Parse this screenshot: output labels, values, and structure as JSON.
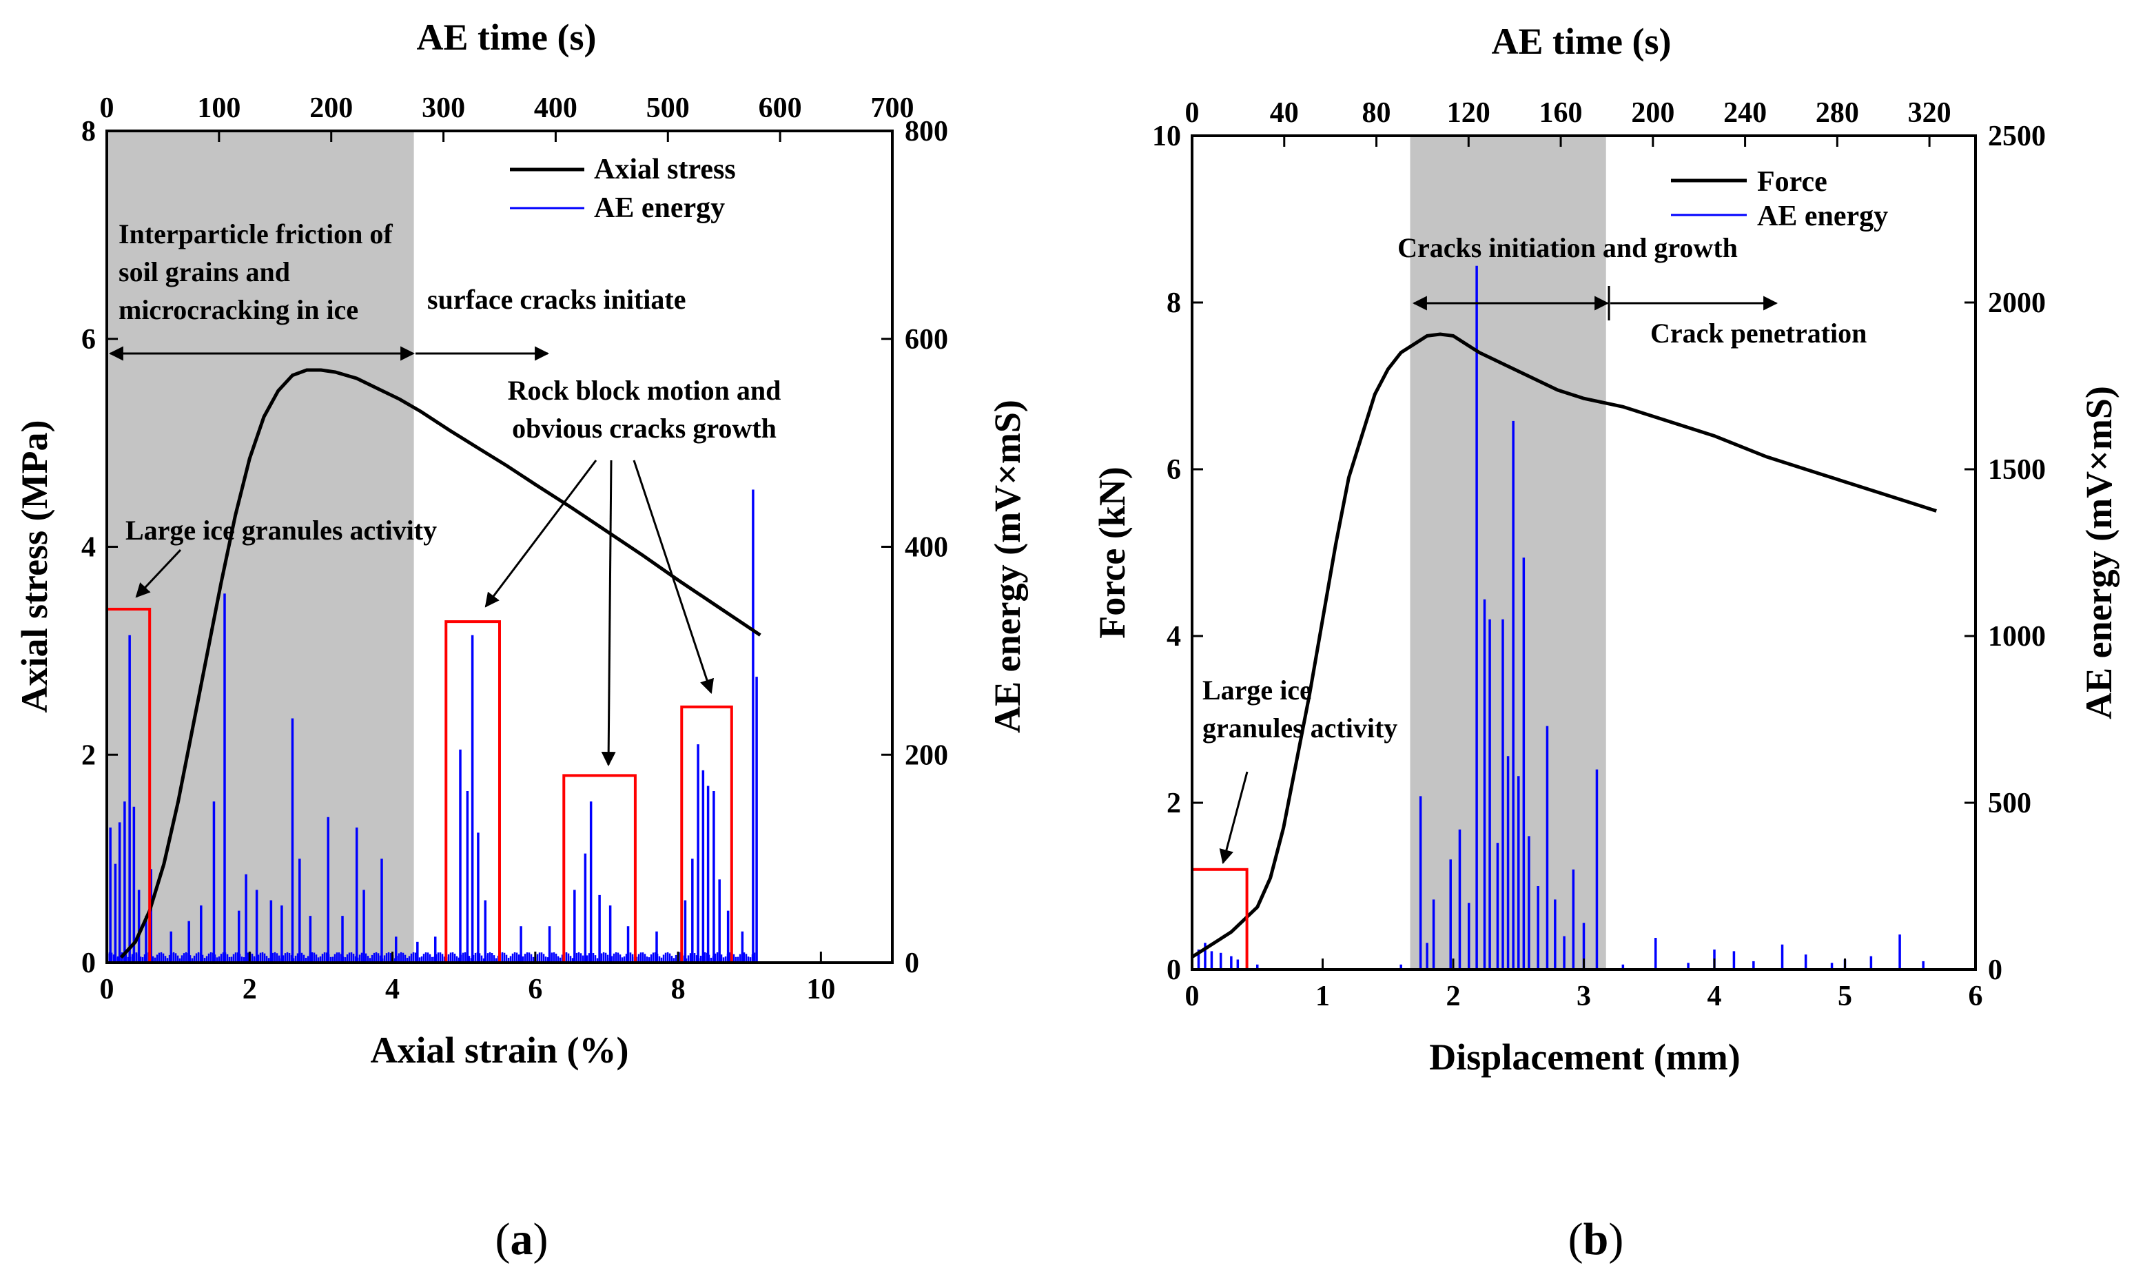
{
  "chart_data": [
    {
      "panel": "a",
      "type": "line",
      "caption_letter": "a",
      "x_bottom": {
        "label": "Axial strain (%)",
        "range": [
          0,
          11
        ],
        "ticks": [
          0,
          2,
          4,
          6,
          8,
          10
        ]
      },
      "x_top": {
        "label": "AE time (s)",
        "range": [
          0,
          700
        ],
        "ticks": [
          0,
          100,
          200,
          300,
          400,
          500,
          600,
          700
        ]
      },
      "y_left": {
        "label": "Axial stress (MPa)",
        "range": [
          0,
          8
        ],
        "ticks": [
          0,
          2,
          4,
          6,
          8
        ]
      },
      "y_right": {
        "label": "AE energy (mV×mS)",
        "range": [
          0,
          800
        ],
        "ticks": [
          0,
          200,
          400,
          600,
          800
        ]
      },
      "shaded_x": [
        0,
        4.3
      ],
      "legend": [
        {
          "name": "Axial stress",
          "color": "#000000"
        },
        {
          "name": "AE energy",
          "color": "#0000ff"
        }
      ],
      "series": [
        {
          "name": "Axial stress",
          "axis": "left",
          "color": "#000000",
          "x": [
            0.2,
            0.4,
            0.6,
            0.8,
            1.0,
            1.2,
            1.4,
            1.6,
            1.8,
            2.0,
            2.2,
            2.4,
            2.6,
            2.8,
            3.0,
            3.2,
            3.5,
            3.8,
            4.1,
            4.4,
            4.8,
            5.2,
            5.6,
            6.0,
            6.5,
            7.0,
            7.5,
            8.0,
            8.5,
            9.0,
            9.15
          ],
          "y": [
            0.05,
            0.2,
            0.5,
            0.95,
            1.55,
            2.25,
            2.95,
            3.65,
            4.3,
            4.85,
            5.25,
            5.5,
            5.65,
            5.7,
            5.7,
            5.68,
            5.62,
            5.52,
            5.42,
            5.3,
            5.12,
            4.95,
            4.78,
            4.6,
            4.38,
            4.15,
            3.92,
            3.68,
            3.45,
            3.22,
            3.15
          ]
        },
        {
          "name": "AE energy",
          "axis": "right",
          "color": "#0000ff",
          "type": "spikes",
          "baseline": 10,
          "peaks": [
            {
              "x": 0.05,
              "y": 130
            },
            {
              "x": 0.12,
              "y": 95
            },
            {
              "x": 0.18,
              "y": 135
            },
            {
              "x": 0.25,
              "y": 155
            },
            {
              "x": 0.32,
              "y": 315
            },
            {
              "x": 0.38,
              "y": 150
            },
            {
              "x": 0.45,
              "y": 70
            },
            {
              "x": 0.55,
              "y": 45
            },
            {
              "x": 0.62,
              "y": 90
            },
            {
              "x": 0.9,
              "y": 30
            },
            {
              "x": 1.15,
              "y": 40
            },
            {
              "x": 1.32,
              "y": 55
            },
            {
              "x": 1.5,
              "y": 155
            },
            {
              "x": 1.65,
              "y": 355
            },
            {
              "x": 1.85,
              "y": 50
            },
            {
              "x": 1.95,
              "y": 85
            },
            {
              "x": 2.1,
              "y": 70
            },
            {
              "x": 2.3,
              "y": 60
            },
            {
              "x": 2.45,
              "y": 55
            },
            {
              "x": 2.6,
              "y": 235
            },
            {
              "x": 2.7,
              "y": 100
            },
            {
              "x": 2.85,
              "y": 45
            },
            {
              "x": 3.1,
              "y": 140
            },
            {
              "x": 3.3,
              "y": 45
            },
            {
              "x": 3.5,
              "y": 130
            },
            {
              "x": 3.6,
              "y": 70
            },
            {
              "x": 3.85,
              "y": 100
            },
            {
              "x": 4.05,
              "y": 25
            },
            {
              "x": 4.35,
              "y": 20
            },
            {
              "x": 4.6,
              "y": 25
            },
            {
              "x": 4.95,
              "y": 205
            },
            {
              "x": 5.05,
              "y": 165
            },
            {
              "x": 5.12,
              "y": 315
            },
            {
              "x": 5.2,
              "y": 125
            },
            {
              "x": 5.3,
              "y": 60
            },
            {
              "x": 5.5,
              "y": 55
            },
            {
              "x": 5.8,
              "y": 35
            },
            {
              "x": 6.2,
              "y": 35
            },
            {
              "x": 6.55,
              "y": 70
            },
            {
              "x": 6.7,
              "y": 105
            },
            {
              "x": 6.78,
              "y": 155
            },
            {
              "x": 6.9,
              "y": 65
            },
            {
              "x": 7.05,
              "y": 55
            },
            {
              "x": 7.3,
              "y": 35
            },
            {
              "x": 7.7,
              "y": 30
            },
            {
              "x": 8.1,
              "y": 60
            },
            {
              "x": 8.2,
              "y": 100
            },
            {
              "x": 8.28,
              "y": 210
            },
            {
              "x": 8.35,
              "y": 185
            },
            {
              "x": 8.42,
              "y": 170
            },
            {
              "x": 8.5,
              "y": 165
            },
            {
              "x": 8.58,
              "y": 80
            },
            {
              "x": 8.7,
              "y": 50
            },
            {
              "x": 8.9,
              "y": 30
            },
            {
              "x": 9.05,
              "y": 455
            },
            {
              "x": 9.1,
              "y": 275
            }
          ]
        }
      ],
      "highlight_boxes": [
        {
          "x": [
            0,
            0.6
          ],
          "y": [
            0,
            3.4
          ]
        },
        {
          "x": [
            4.75,
            5.5
          ],
          "y": [
            0,
            3.28
          ]
        },
        {
          "x": [
            6.4,
            7.4
          ],
          "y": [
            0,
            1.8
          ]
        },
        {
          "x": [
            8.05,
            8.75
          ],
          "y": [
            0,
            2.46
          ]
        }
      ],
      "annotations": {
        "friction_line1": "Interparticle friction of",
        "friction_line2": "soil grains and",
        "friction_line3": "microcracking in ice",
        "surface": "surface cracks initiate",
        "rock_line1": "Rock block motion and",
        "rock_line2": "obvious cracks growth",
        "large_ice": "Large ice granules activity"
      }
    },
    {
      "panel": "b",
      "type": "line",
      "caption_letter": "b",
      "x_bottom": {
        "label": "Displacement (mm)",
        "range": [
          0,
          6
        ],
        "ticks": [
          0,
          1,
          2,
          3,
          4,
          5,
          6
        ]
      },
      "x_top": {
        "label": "AE time (s)",
        "range": [
          0,
          340
        ],
        "ticks": [
          0,
          40,
          80,
          120,
          160,
          200,
          240,
          280,
          320
        ]
      },
      "y_left": {
        "label": "Force (kN)",
        "range": [
          0,
          10
        ],
        "ticks": [
          0,
          2,
          4,
          6,
          8,
          10
        ]
      },
      "y_right": {
        "label": "AE energy (mV×mS)",
        "range": [
          0,
          2500
        ],
        "ticks": [
          0,
          500,
          1000,
          1500,
          2000,
          2500
        ]
      },
      "shaded_x": [
        1.67,
        3.17
      ],
      "legend": [
        {
          "name": "Force",
          "color": "#000000"
        },
        {
          "name": "AE energy",
          "color": "#0000ff"
        }
      ],
      "series": [
        {
          "name": "Force",
          "axis": "left",
          "color": "#000000",
          "x": [
            0.0,
            0.1,
            0.2,
            0.3,
            0.4,
            0.5,
            0.6,
            0.7,
            0.8,
            0.9,
            1.0,
            1.1,
            1.2,
            1.3,
            1.4,
            1.5,
            1.6,
            1.7,
            1.8,
            1.9,
            2.0,
            2.1,
            2.2,
            2.4,
            2.6,
            2.8,
            3.0,
            3.3,
            3.6,
            4.0,
            4.4,
            4.8,
            5.2,
            5.5,
            5.7
          ],
          "y": [
            0.15,
            0.25,
            0.35,
            0.45,
            0.6,
            0.75,
            1.1,
            1.7,
            2.5,
            3.3,
            4.2,
            5.1,
            5.9,
            6.4,
            6.9,
            7.2,
            7.4,
            7.5,
            7.6,
            7.62,
            7.6,
            7.5,
            7.4,
            7.25,
            7.1,
            6.95,
            6.85,
            6.75,
            6.6,
            6.4,
            6.15,
            5.95,
            5.75,
            5.6,
            5.5
          ]
        },
        {
          "name": "AE energy",
          "axis": "right",
          "color": "#0000ff",
          "type": "spikes",
          "baseline": 4,
          "peaks": [
            {
              "x": 0.05,
              "y": 60
            },
            {
              "x": 0.1,
              "y": 80
            },
            {
              "x": 0.15,
              "y": 55
            },
            {
              "x": 0.22,
              "y": 50
            },
            {
              "x": 0.3,
              "y": 40
            },
            {
              "x": 0.35,
              "y": 30
            },
            {
              "x": 0.5,
              "y": 15
            },
            {
              "x": 1.6,
              "y": 15
            },
            {
              "x": 1.75,
              "y": 520
            },
            {
              "x": 1.8,
              "y": 80
            },
            {
              "x": 1.85,
              "y": 210
            },
            {
              "x": 1.98,
              "y": 330
            },
            {
              "x": 2.05,
              "y": 420
            },
            {
              "x": 2.12,
              "y": 200
            },
            {
              "x": 2.18,
              "y": 2110
            },
            {
              "x": 2.24,
              "y": 1110
            },
            {
              "x": 2.28,
              "y": 1050
            },
            {
              "x": 2.34,
              "y": 380
            },
            {
              "x": 2.38,
              "y": 1050
            },
            {
              "x": 2.42,
              "y": 640
            },
            {
              "x": 2.46,
              "y": 1645
            },
            {
              "x": 2.5,
              "y": 580
            },
            {
              "x": 2.54,
              "y": 1235
            },
            {
              "x": 2.58,
              "y": 400
            },
            {
              "x": 2.65,
              "y": 250
            },
            {
              "x": 2.72,
              "y": 730
            },
            {
              "x": 2.78,
              "y": 210
            },
            {
              "x": 2.85,
              "y": 100
            },
            {
              "x": 2.92,
              "y": 300
            },
            {
              "x": 3.0,
              "y": 140
            },
            {
              "x": 3.1,
              "y": 600
            },
            {
              "x": 3.3,
              "y": 15
            },
            {
              "x": 3.55,
              "y": 95
            },
            {
              "x": 3.8,
              "y": 20
            },
            {
              "x": 4.0,
              "y": 60
            },
            {
              "x": 4.15,
              "y": 55
            },
            {
              "x": 4.3,
              "y": 25
            },
            {
              "x": 4.52,
              "y": 75
            },
            {
              "x": 4.7,
              "y": 45
            },
            {
              "x": 4.9,
              "y": 20
            },
            {
              "x": 5.0,
              "y": 30
            },
            {
              "x": 5.2,
              "y": 40
            },
            {
              "x": 5.42,
              "y": 105
            },
            {
              "x": 5.6,
              "y": 25
            }
          ]
        }
      ],
      "highlight_boxes": [
        {
          "x": [
            0,
            0.42
          ],
          "y": [
            0,
            1.2
          ]
        }
      ],
      "annotations": {
        "initiation": "Cracks initiation and growth",
        "penetration": "Crack penetration",
        "large_ice_line1": "Large ice",
        "large_ice_line2": "granules activity"
      }
    }
  ]
}
